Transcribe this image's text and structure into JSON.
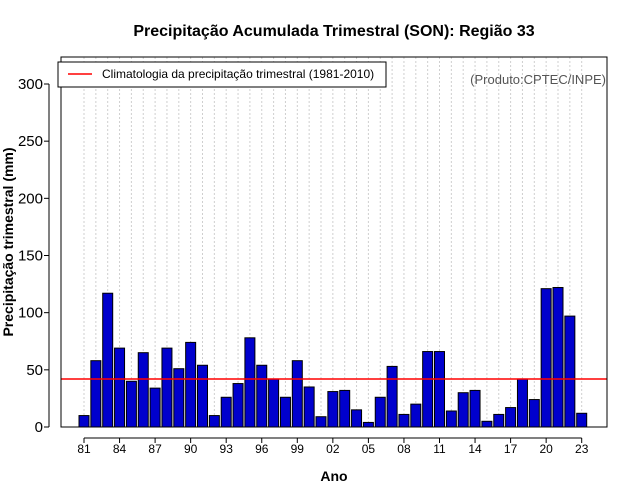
{
  "chart_data": {
    "type": "bar",
    "title": "Precipitação Acumulada Trimestral (SON): Região 33",
    "xlabel": "Ano",
    "ylabel": "Precipitação trimestral (mm)",
    "ylim": [
      0,
      320
    ],
    "yticks": [
      0,
      50,
      100,
      150,
      200,
      250,
      300
    ],
    "categories": [
      "1981",
      "1982",
      "1983",
      "1984",
      "1985",
      "1986",
      "1987",
      "1988",
      "1989",
      "1990",
      "1991",
      "1992",
      "1993",
      "1994",
      "1995",
      "1996",
      "1997",
      "1998",
      "1999",
      "2000",
      "2001",
      "2002",
      "2003",
      "2004",
      "2005",
      "2006",
      "2007",
      "2008",
      "2009",
      "2010",
      "2011",
      "2012",
      "2013",
      "2014",
      "2015",
      "2016",
      "2017",
      "2018",
      "2019",
      "2020",
      "2021",
      "2022",
      "2023"
    ],
    "xtick_labels": [
      "81",
      "84",
      "87",
      "90",
      "93",
      "96",
      "99",
      "02",
      "05",
      "08",
      "11",
      "14",
      "17",
      "20",
      "23"
    ],
    "xtick_indices": [
      0,
      3,
      6,
      9,
      12,
      15,
      18,
      21,
      24,
      27,
      30,
      33,
      36,
      39,
      42
    ],
    "values": [
      10,
      58,
      117,
      69,
      40,
      65,
      34,
      69,
      51,
      74,
      54,
      10,
      26,
      38,
      78,
      54,
      42,
      26,
      58,
      35,
      9,
      31,
      32,
      15,
      4,
      26,
      53,
      11,
      20,
      66,
      66,
      14,
      30,
      32,
      5,
      11,
      17,
      42,
      24,
      121,
      122,
      97,
      12
    ],
    "bar_color": "#0000cd",
    "grid": true,
    "climatology": {
      "value": 42,
      "color": "#ff0000",
      "label": "Climatologia da precipitação trimestral (1981-2010)"
    },
    "legend_position": "top-left",
    "credit": "(Produto:CPTEC/INPE)"
  }
}
